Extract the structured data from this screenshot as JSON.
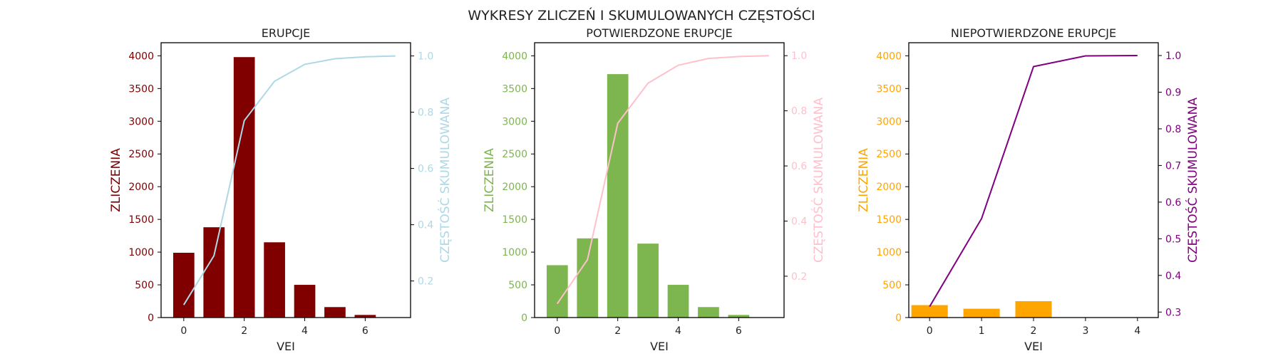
{
  "figure_title": "WYKRESY ZLICZEŃ I SKUMULOWANYCH CZĘSTOŚCI",
  "chart_data": [
    {
      "type": "bar",
      "title": "ERUPCJE",
      "xlabel": "VEI",
      "ylabel": "ZLICZENIA",
      "y2label": "CZĘSTOŚĆ SKUMULOWANA",
      "bar_color": "#800000",
      "line_color": "#add8e6",
      "y_tick_color": "#800000",
      "y2_tick_color": "#add8e6",
      "categories": [
        0,
        1,
        2,
        3,
        4,
        5,
        6
      ],
      "values": [
        990,
        1380,
        3980,
        1150,
        500,
        160,
        40
      ],
      "xlim": [
        -0.75,
        7.5
      ],
      "ylim": [
        0,
        4200
      ],
      "yticks": [
        0,
        500,
        1000,
        1500,
        2000,
        2500,
        3000,
        3500,
        4000
      ],
      "xticks": [
        0,
        2,
        4,
        6
      ],
      "y2lim": [
        0.07,
        1.047
      ],
      "y2ticks": [
        0.2,
        0.4,
        0.6,
        0.8,
        1.0
      ],
      "cumulative": {
        "x": [
          0,
          1,
          2,
          3,
          4,
          5,
          6,
          7
        ],
        "y": [
          0.115,
          0.29,
          0.77,
          0.91,
          0.97,
          0.99,
          0.997,
          1.0
        ]
      }
    },
    {
      "type": "bar",
      "title": "POTWIERDZONE ERUPCJE",
      "xlabel": "VEI",
      "ylabel": "ZLICZENIA",
      "y2label": "CZĘSTOŚĆ SKUMULOWANA",
      "bar_color": "#7db54f",
      "line_color": "#ffc0cb",
      "y_tick_color": "#7db54f",
      "y2_tick_color": "#ffc0cb",
      "categories": [
        0,
        1,
        2,
        3,
        4,
        5,
        6
      ],
      "values": [
        800,
        1210,
        3720,
        1130,
        500,
        160,
        40
      ],
      "xlim": [
        -0.75,
        7.5
      ],
      "ylim": [
        0,
        4200
      ],
      "yticks": [
        0,
        500,
        1000,
        1500,
        2000,
        2500,
        3000,
        3500,
        4000
      ],
      "xticks": [
        0,
        2,
        4,
        6
      ],
      "y2lim": [
        0.05,
        1.047
      ],
      "y2ticks": [
        0.2,
        0.4,
        0.6,
        0.8,
        1.0
      ],
      "cumulative": {
        "x": [
          0,
          1,
          2,
          3,
          4,
          5,
          6,
          7
        ],
        "y": [
          0.1,
          0.26,
          0.755,
          0.9,
          0.965,
          0.99,
          0.997,
          1.0
        ]
      }
    },
    {
      "type": "bar",
      "title": "NIEPOTWIERDZONE ERUPCJE",
      "xlabel": "VEI",
      "ylabel": "ZLICZENIA",
      "y2label": "CZĘSTOŚĆ SKUMULOWANA",
      "bar_color": "#ffa500",
      "line_color": "#800080",
      "y_tick_color": "#ffa500",
      "y2_tick_color": "#800080",
      "categories": [
        0,
        1,
        2
      ],
      "values": [
        190,
        135,
        250
      ],
      "xlim": [
        -0.4,
        4.4
      ],
      "ylim": [
        0,
        4200
      ],
      "yticks": [
        0,
        500,
        1000,
        1500,
        2000,
        2500,
        3000,
        3500,
        4000
      ],
      "xticks": [
        0,
        1,
        2,
        3,
        4
      ],
      "y2lim": [
        0.285,
        1.035
      ],
      "y2ticks": [
        0.3,
        0.4,
        0.5,
        0.6,
        0.7,
        0.8,
        0.9,
        1.0
      ],
      "cumulative": {
        "x": [
          0,
          1,
          2,
          3,
          4
        ],
        "y": [
          0.315,
          0.555,
          0.97,
          0.999,
          1.0
        ]
      }
    }
  ]
}
